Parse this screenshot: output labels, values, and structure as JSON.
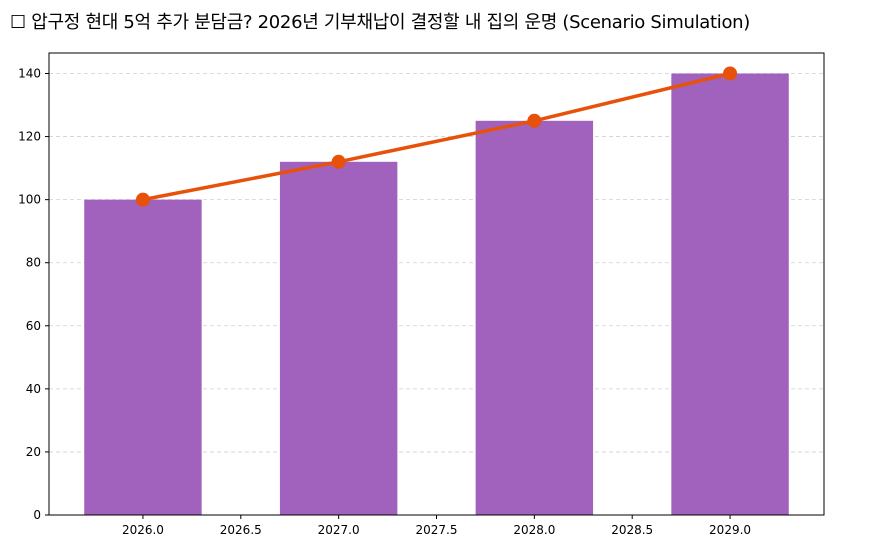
{
  "chart_data": {
    "type": "bar+line",
    "title": "☐ 압구정 현대 5억 추가 분담금? 2026년 기부채납이 결정할 내 집의 운명 (Scenario Simulation)",
    "xlabel": "",
    "ylabel": "",
    "x": [
      2026,
      2027,
      2028,
      2029
    ],
    "bar_values": [
      100,
      112,
      125,
      140
    ],
    "line_values": [
      100,
      112,
      125,
      140
    ],
    "xlim": [
      2025.52,
      2029.48
    ],
    "ylim": [
      0,
      146.5
    ],
    "xticks": [
      "2026.0",
      "2026.5",
      "2027.0",
      "2027.5",
      "2028.0",
      "2028.5",
      "2029.0"
    ],
    "yticks": [
      "0",
      "20",
      "40",
      "60",
      "80",
      "100",
      "120",
      "140"
    ],
    "grid": "y-dashed",
    "bar_color": "#a062bd",
    "line_color": "#e8510a"
  }
}
